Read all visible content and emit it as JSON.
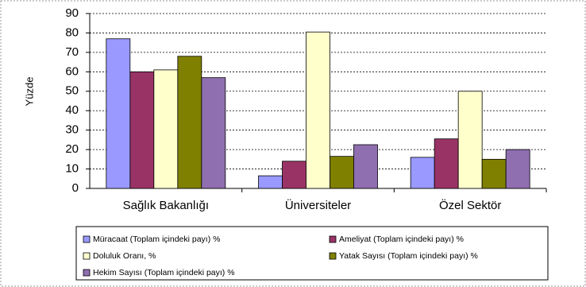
{
  "chart_data": {
    "type": "bar",
    "y_label": "Yüzde",
    "categories": [
      "Sağlık Bakanlığı",
      "Üniversiteler",
      "Özel Sektör"
    ],
    "series": [
      {
        "name": "Müracaat (Toplam içindeki payı) %",
        "color": "#9999ff",
        "values": [
          77,
          6.5,
          16
        ]
      },
      {
        "name": "Ameliyat (Toplam içindeki payı) %",
        "color": "#993366",
        "values": [
          60,
          14,
          25.5
        ]
      },
      {
        "name": "Doluluk Oranı, %",
        "color": "#ffffcc",
        "values": [
          61,
          80.5,
          50
        ]
      },
      {
        "name": "Yatak Sayısı (Toplam içindeki payı) %",
        "color": "#808000",
        "values": [
          68,
          16.5,
          15
        ]
      },
      {
        "name": "Hekim Sayısı (Toplam içindeki payı) %",
        "color": "#8f6fb0",
        "values": [
          57,
          22.5,
          20
        ]
      }
    ],
    "ylim": [
      0,
      90
    ],
    "yticks": [
      0,
      10,
      20,
      30,
      40,
      50,
      60,
      70,
      80,
      90
    ],
    "grid": true
  }
}
